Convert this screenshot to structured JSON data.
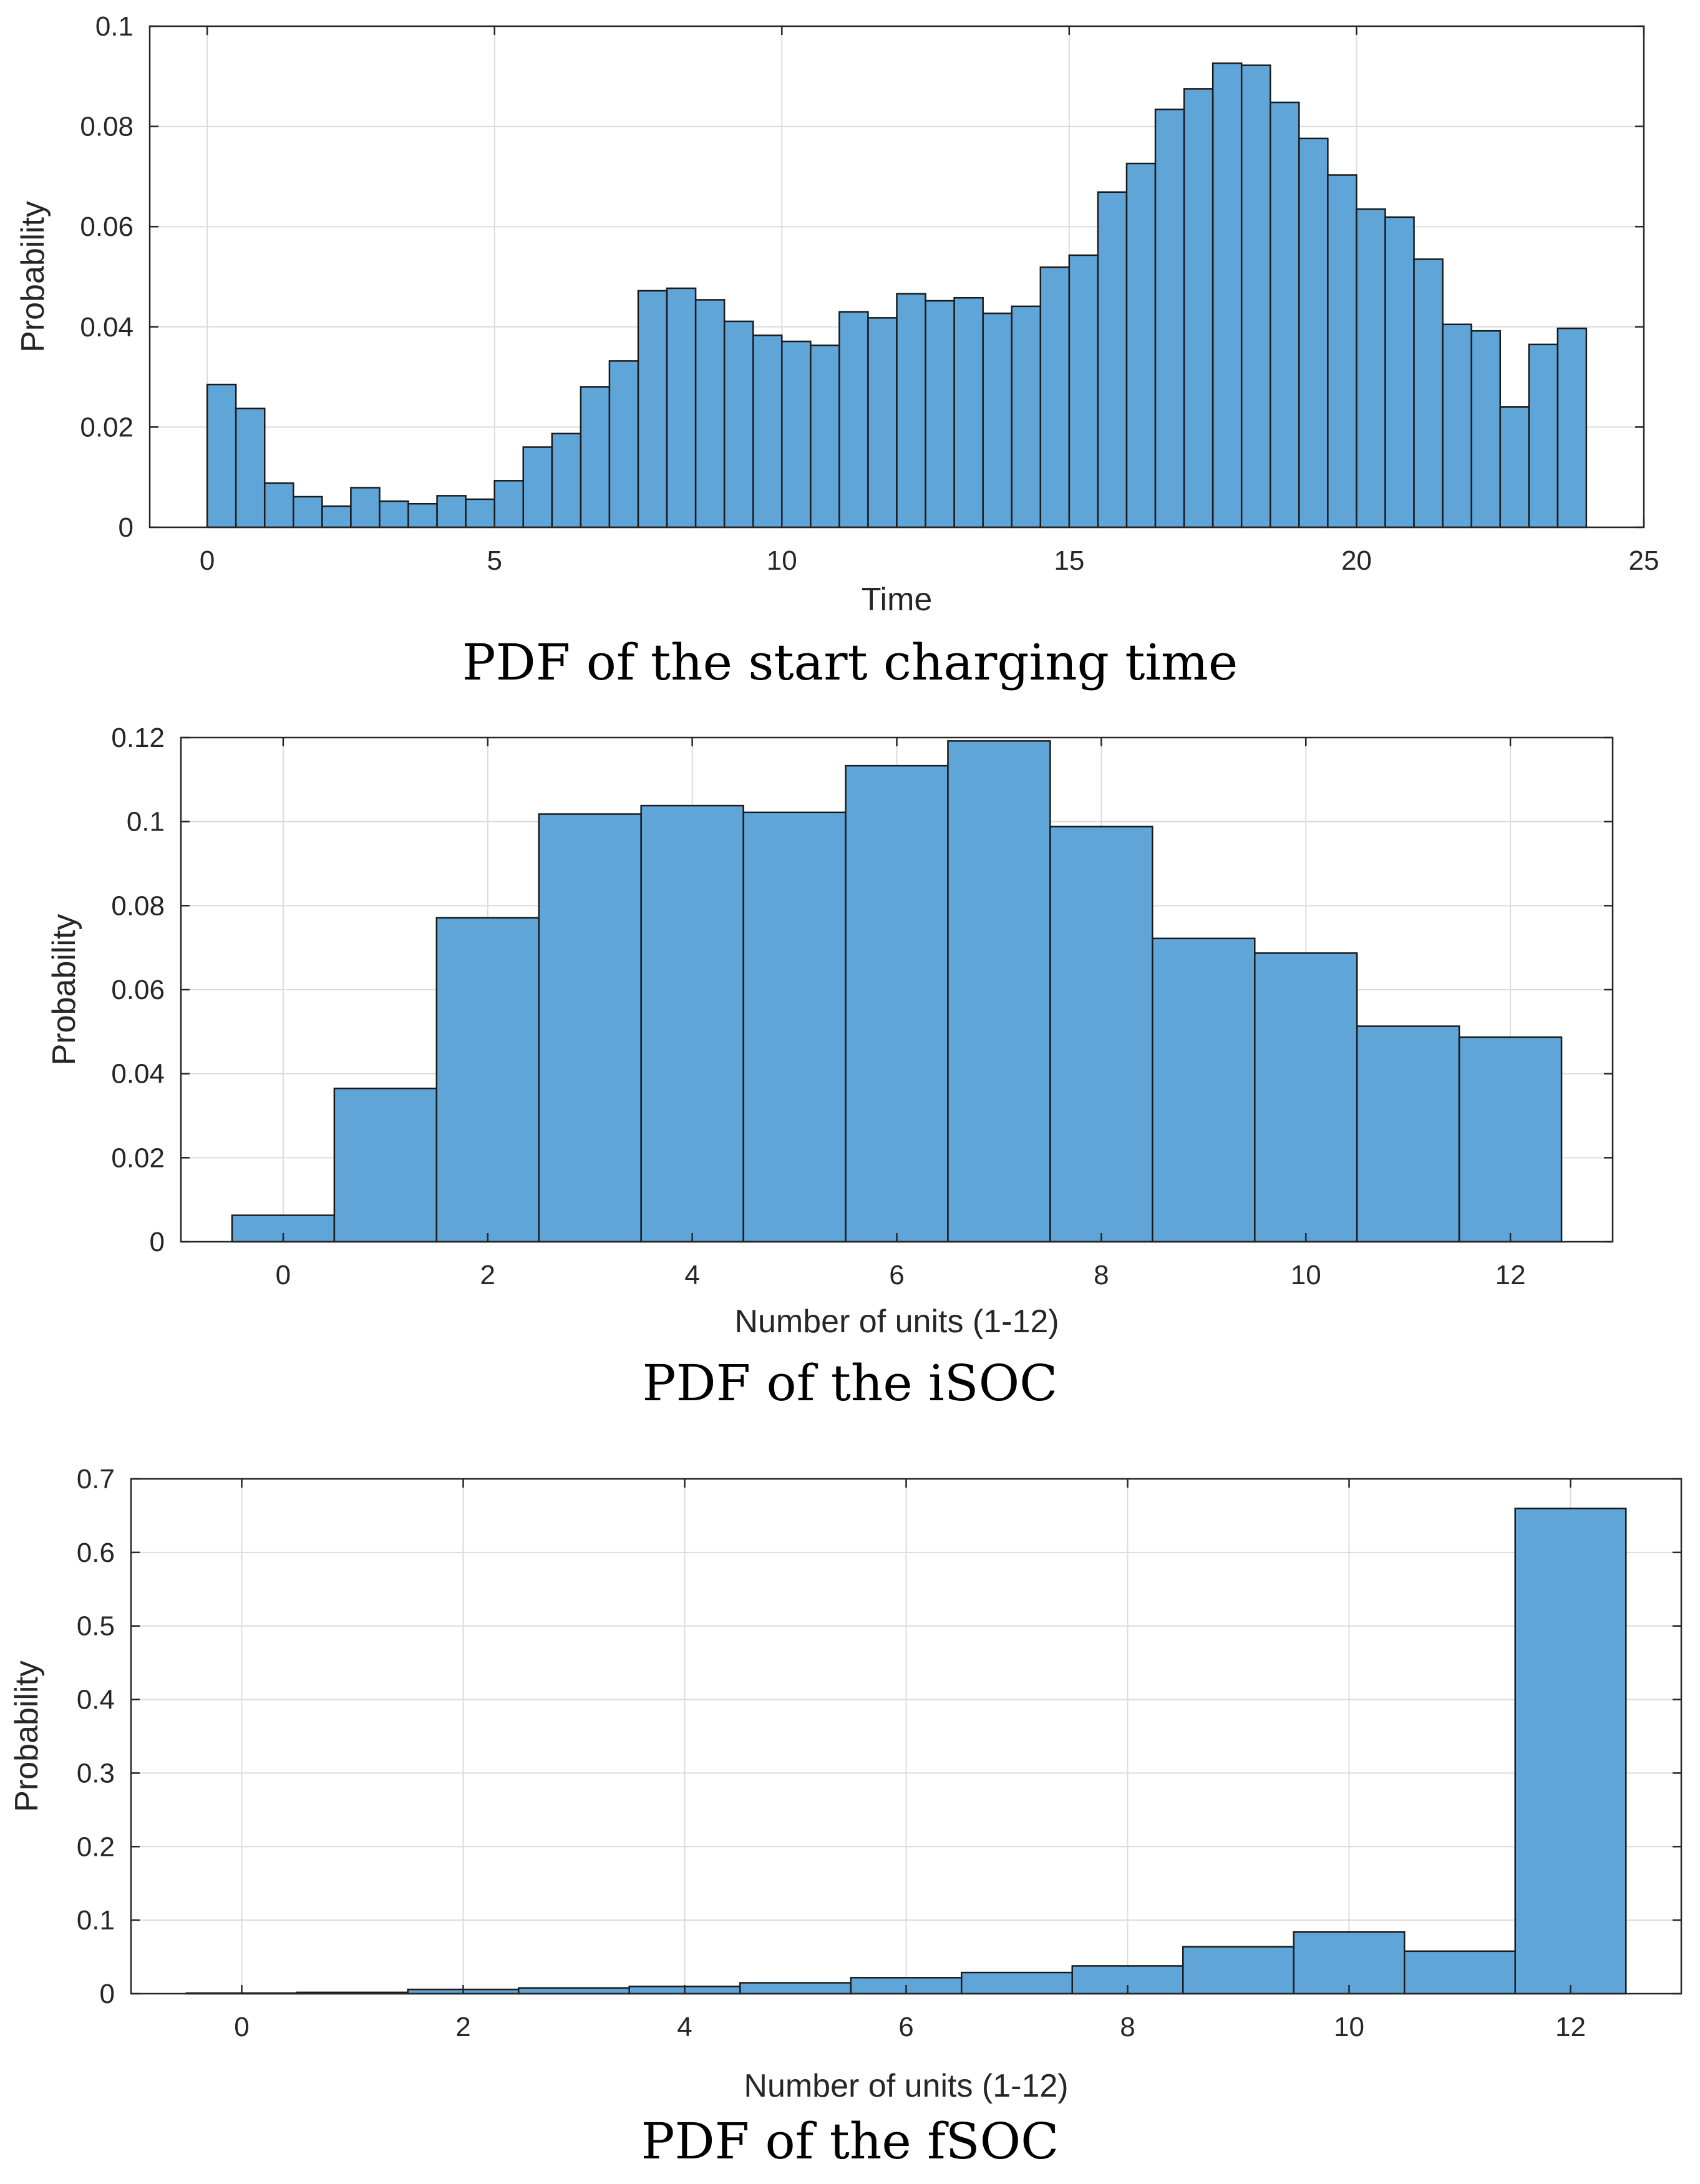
{
  "colors": {
    "bar_fill": "#5fa5d8",
    "bar_edge": "#1a1a1a",
    "grid": "#dcdcdc",
    "axis": "#262626"
  },
  "chart_data": [
    {
      "type": "bar",
      "title": "PDF of the start charging time",
      "xlabel": "Time",
      "ylabel": "Probability",
      "xlim": [
        -1,
        25
      ],
      "ylim": [
        0,
        0.1
      ],
      "xticks": [
        0,
        5,
        10,
        15,
        20,
        25
      ],
      "xtick_labels": [
        "0",
        "5",
        "10",
        "15",
        "20",
        "25"
      ],
      "yticks": [
        0,
        0.02,
        0.04,
        0.06,
        0.08,
        0.1
      ],
      "ytick_labels": [
        "0",
        "0.02",
        "0.04",
        "0.06",
        "0.08",
        "0.1"
      ],
      "grid": true,
      "bin_start": 0,
      "bin_width": 0.5,
      "values": [
        0.0285,
        0.0237,
        0.0088,
        0.0061,
        0.0042,
        0.0079,
        0.0052,
        0.0047,
        0.0063,
        0.0056,
        0.0093,
        0.016,
        0.0187,
        0.028,
        0.0332,
        0.0472,
        0.0477,
        0.0454,
        0.0411,
        0.0383,
        0.0371,
        0.0363,
        0.043,
        0.0418,
        0.0466,
        0.0452,
        0.0458,
        0.0427,
        0.0441,
        0.0519,
        0.0543,
        0.0669,
        0.0726,
        0.0834,
        0.0875,
        0.0926,
        0.0922,
        0.0848,
        0.0776,
        0.0703,
        0.0635,
        0.0619,
        0.0535,
        0.0405,
        0.0392,
        0.024,
        0.0365,
        0.0397
      ]
    },
    {
      "type": "bar",
      "title": "PDF of the iSOC",
      "xlabel": "Number of units (1-12)",
      "ylabel": "Probability",
      "xlim": [
        -1,
        13
      ],
      "ylim": [
        0,
        0.12
      ],
      "xticks": [
        0,
        2,
        4,
        6,
        8,
        10,
        12
      ],
      "xtick_labels": [
        "0",
        "2",
        "4",
        "6",
        "8",
        "10",
        "12"
      ],
      "yticks": [
        0,
        0.02,
        0.04,
        0.06,
        0.08,
        0.1,
        0.12
      ],
      "ytick_labels": [
        "0",
        "0.02",
        "0.04",
        "0.06",
        "0.08",
        "0.1",
        "0.12"
      ],
      "grid": true,
      "categories": [
        0,
        1,
        2,
        3,
        4,
        5,
        6,
        7,
        8,
        9,
        10,
        11,
        12
      ],
      "bin_width": 1,
      "values": [
        0.0063,
        0.0365,
        0.0771,
        0.1018,
        0.1038,
        0.1022,
        0.1133,
        0.1192,
        0.0988,
        0.0722,
        0.0687,
        0.0513,
        0.0487
      ]
    },
    {
      "type": "bar",
      "title": "PDF of the fSOC",
      "xlabel": "Number of units (1-12)",
      "ylabel": "Probability",
      "xlim": [
        -1,
        13
      ],
      "ylim": [
        0,
        0.7
      ],
      "xticks": [
        0,
        2,
        4,
        6,
        8,
        10,
        12
      ],
      "xtick_labels": [
        "0",
        "2",
        "4",
        "6",
        "8",
        "10",
        "12"
      ],
      "yticks": [
        0,
        0.1,
        0.2,
        0.3,
        0.4,
        0.5,
        0.6,
        0.7
      ],
      "ytick_labels": [
        "0",
        "0.1",
        "0.2",
        "0.3",
        "0.4",
        "0.5",
        "0.6",
        "0.7"
      ],
      "grid": true,
      "categories": [
        0,
        1,
        2,
        3,
        4,
        5,
        6,
        7,
        8,
        9,
        10,
        11,
        12
      ],
      "bin_width": 1,
      "values": [
        0.0008,
        0.0018,
        0.0058,
        0.0078,
        0.0098,
        0.0148,
        0.0218,
        0.0288,
        0.0378,
        0.0638,
        0.0838,
        0.0578,
        0.6598
      ]
    }
  ]
}
